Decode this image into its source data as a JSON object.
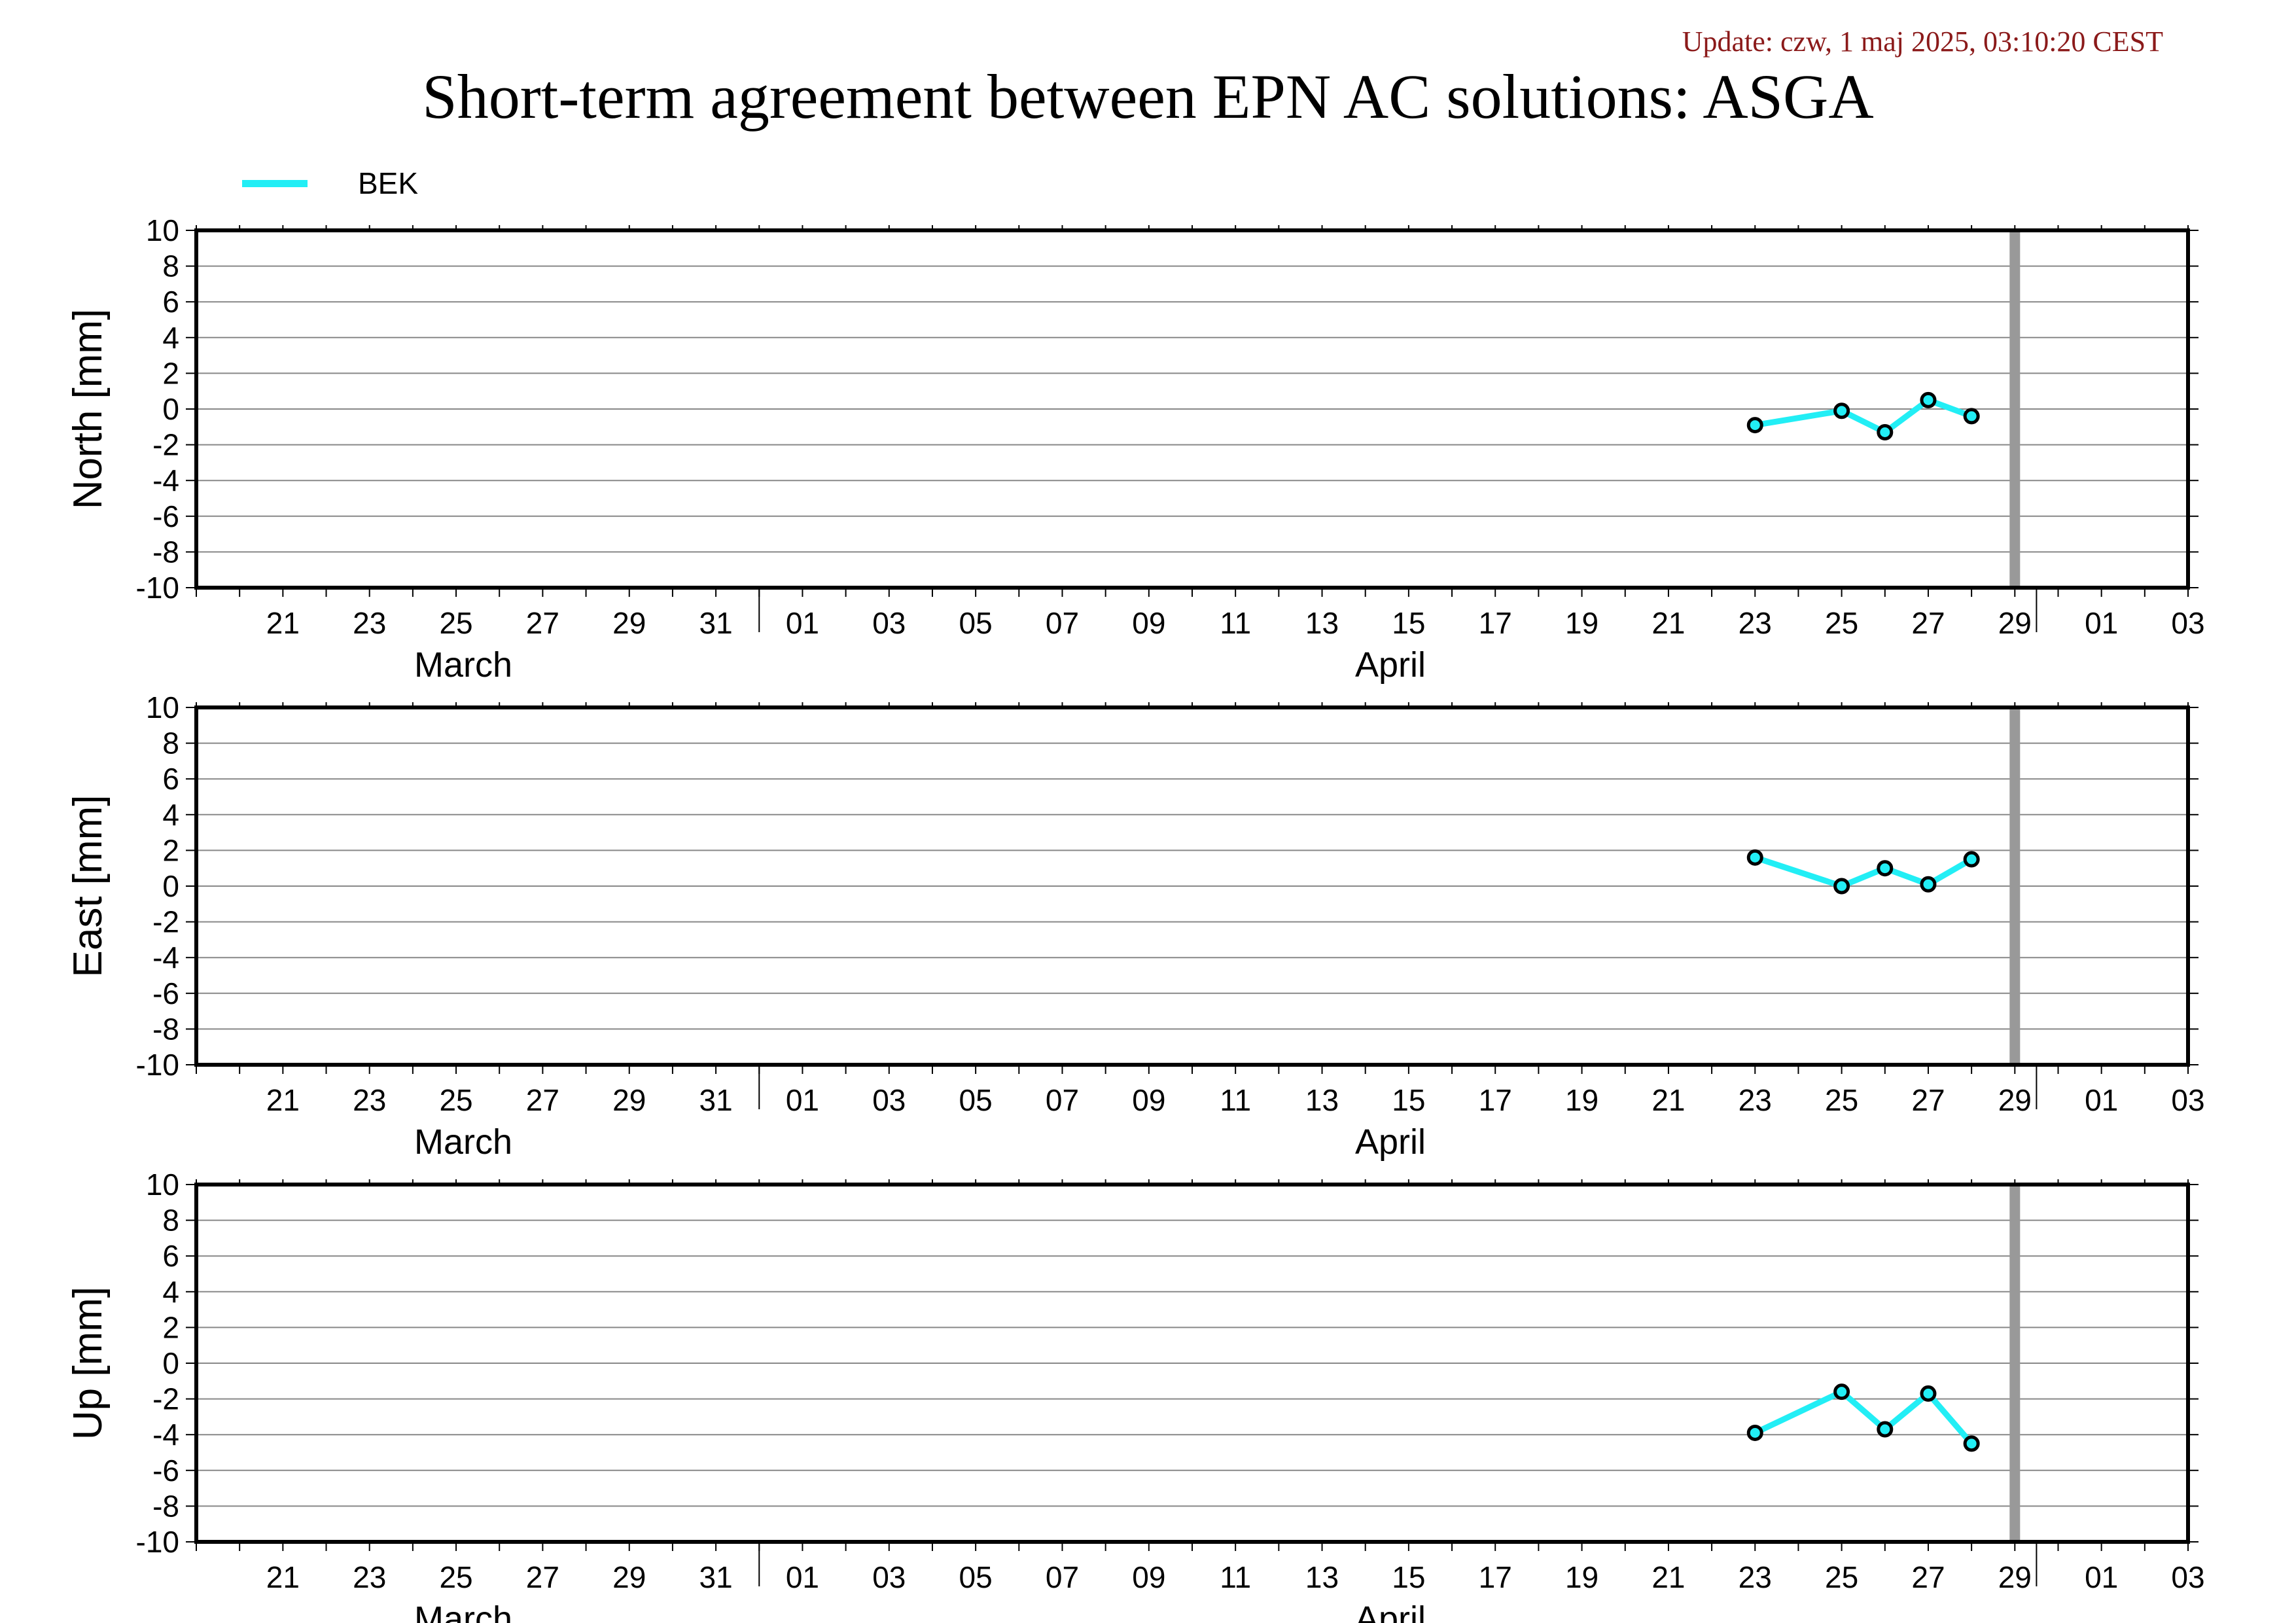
{
  "update_text": "Update: czw, 1 maj 2025, 03:10:20 CEST",
  "title": "Short-term agreement between EPN AC solutions: ASGA",
  "legend": [
    {
      "label": "BEK",
      "color": "#22eef5"
    }
  ],
  "colors": {
    "series": "#22eef5",
    "marker_fill": "#22eef5",
    "marker_stroke": "#000000",
    "marker_line": "#999999",
    "grid": "#888888",
    "frame": "#000000"
  },
  "chart_data": [
    {
      "type": "line",
      "ylabel": "North [mm]",
      "ylim": [
        -10,
        10
      ],
      "yticks": [
        10,
        8,
        6,
        4,
        2,
        0,
        -2,
        -4,
        -6,
        -8,
        -10
      ],
      "xlim": [
        "2025-03-19",
        "2025-05-04"
      ],
      "xtick_labels": [
        "21",
        "23",
        "25",
        "27",
        "29",
        "31",
        "01",
        "03",
        "05",
        "07",
        "09",
        "11",
        "13",
        "15",
        "17",
        "19",
        "21",
        "23",
        "25",
        "27",
        "29",
        "01",
        "03"
      ],
      "month_labels": [
        "March",
        "April"
      ],
      "grid": true,
      "vertical_marker": "2025-04-30",
      "series": [
        {
          "name": "BEK",
          "x": [
            "2025-04-24",
            "2025-04-26",
            "2025-04-27",
            "2025-04-28",
            "2025-04-29"
          ],
          "y": [
            -0.9,
            -0.1,
            -1.3,
            0.5,
            -0.4
          ]
        }
      ]
    },
    {
      "type": "line",
      "ylabel": "East [mm]",
      "ylim": [
        -10,
        10
      ],
      "yticks": [
        10,
        8,
        6,
        4,
        2,
        0,
        -2,
        -4,
        -6,
        -8,
        -10
      ],
      "xlim": [
        "2025-03-19",
        "2025-05-04"
      ],
      "xtick_labels": [
        "21",
        "23",
        "25",
        "27",
        "29",
        "31",
        "01",
        "03",
        "05",
        "07",
        "09",
        "11",
        "13",
        "15",
        "17",
        "19",
        "21",
        "23",
        "25",
        "27",
        "29",
        "01",
        "03"
      ],
      "month_labels": [
        "March",
        "April"
      ],
      "grid": true,
      "vertical_marker": "2025-04-30",
      "series": [
        {
          "name": "BEK",
          "x": [
            "2025-04-24",
            "2025-04-26",
            "2025-04-27",
            "2025-04-28",
            "2025-04-29"
          ],
          "y": [
            1.6,
            0.0,
            1.0,
            0.1,
            1.5
          ]
        }
      ]
    },
    {
      "type": "line",
      "ylabel": "Up [mm]",
      "ylim": [
        -10,
        10
      ],
      "yticks": [
        10,
        8,
        6,
        4,
        2,
        0,
        -2,
        -4,
        -6,
        -8,
        -10
      ],
      "xlim": [
        "2025-03-19",
        "2025-05-04"
      ],
      "xtick_labels": [
        "21",
        "23",
        "25",
        "27",
        "29",
        "31",
        "01",
        "03",
        "05",
        "07",
        "09",
        "11",
        "13",
        "15",
        "17",
        "19",
        "21",
        "23",
        "25",
        "27",
        "29",
        "01",
        "03"
      ],
      "month_labels": [
        "March",
        "April"
      ],
      "grid": true,
      "vertical_marker": "2025-04-30",
      "series": [
        {
          "name": "BEK",
          "x": [
            "2025-04-24",
            "2025-04-26",
            "2025-04-27",
            "2025-04-28",
            "2025-04-29"
          ],
          "y": [
            -3.9,
            -1.6,
            -3.7,
            -1.7,
            -4.5
          ]
        }
      ]
    }
  ]
}
